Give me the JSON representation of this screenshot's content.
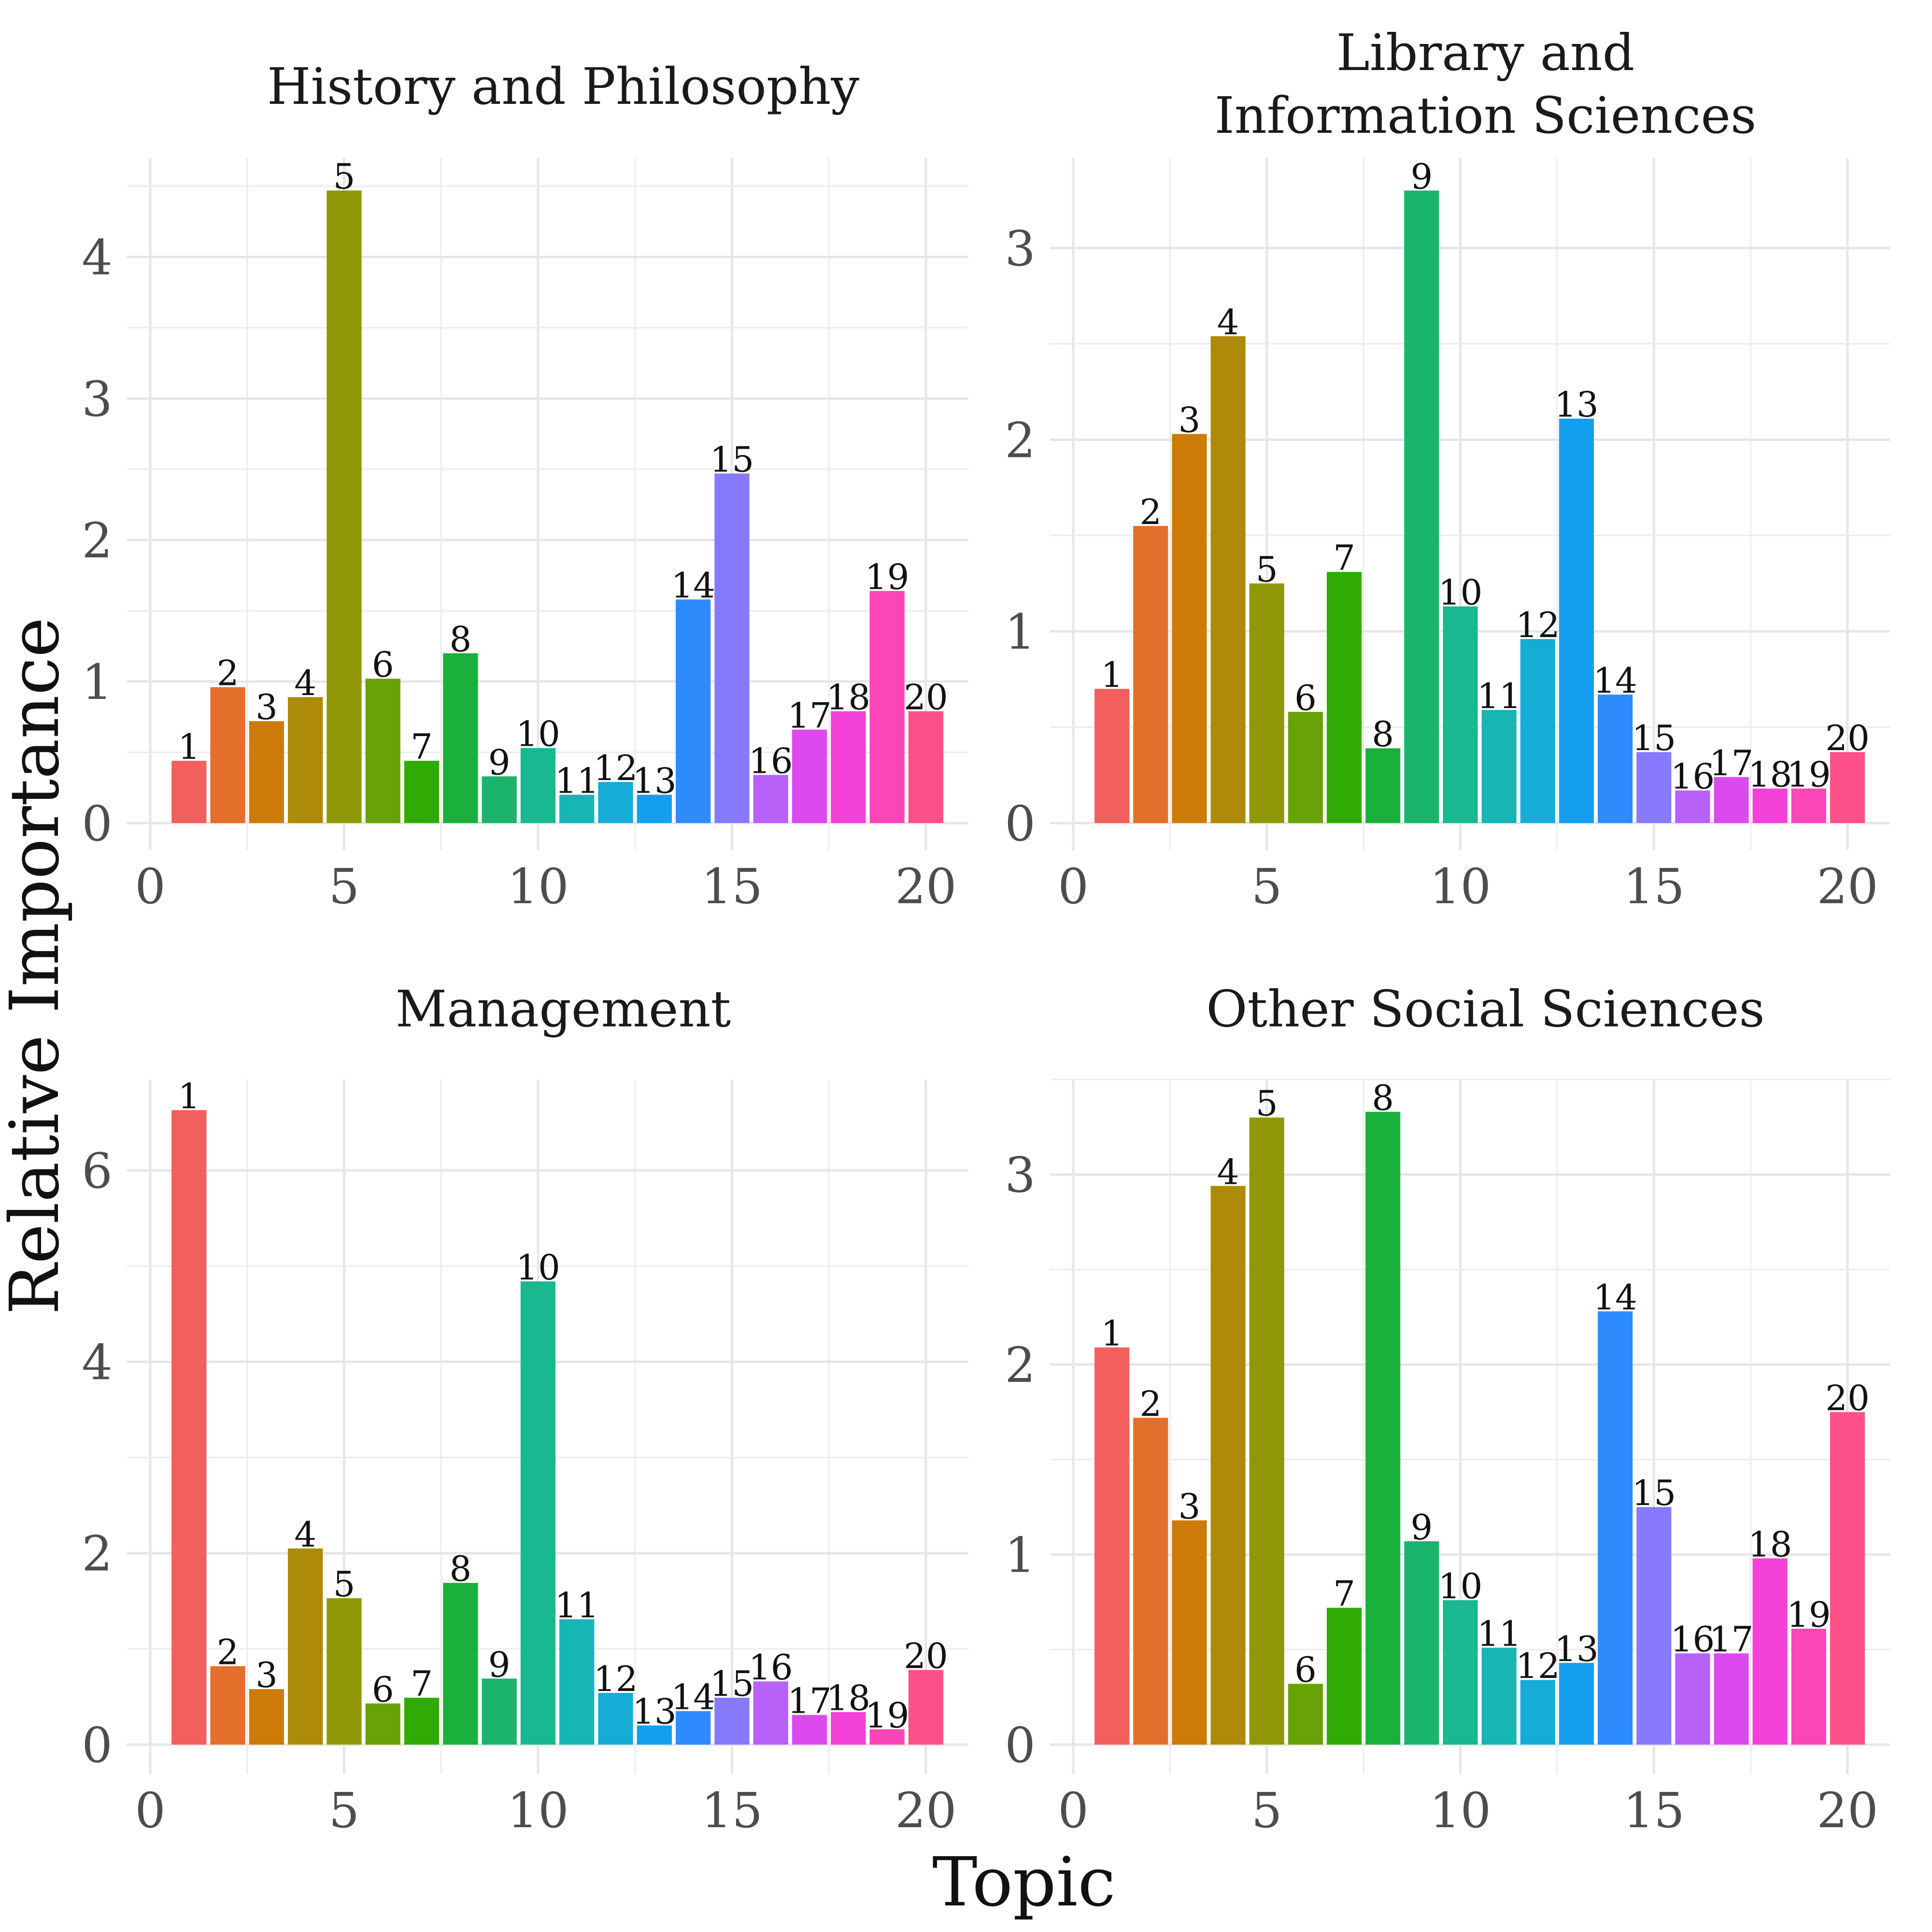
{
  "chart_data": {
    "type": "bar",
    "xlabel": "Topic",
    "ylabel": "Relative Importance",
    "x_ticks": [
      0,
      5,
      10,
      15,
      20
    ],
    "grid": true,
    "legend": "none",
    "categories": [
      1,
      2,
      3,
      4,
      5,
      6,
      7,
      8,
      9,
      10,
      11,
      12,
      13,
      14,
      15,
      16,
      17,
      18,
      19,
      20
    ],
    "colors": [
      "#F25F5C",
      "#E36F2A",
      "#CD7B08",
      "#AD8B08",
      "#919808",
      "#69A208",
      "#30AB04",
      "#19B03C",
      "#1BB46D",
      "#19B891",
      "#18B5B5",
      "#16ACD6",
      "#149FEE",
      "#2E8BFC",
      "#8779FB",
      "#B861F9",
      "#DC49EF",
      "#F341D7",
      "#FC45B8",
      "#FD4F88"
    ],
    "panels": [
      {
        "title": "History and Philosophy",
        "y_ticks": [
          0,
          1,
          2,
          3,
          4
        ],
        "ylim": [
          0,
          4.7
        ],
        "values": [
          0.44,
          0.96,
          0.72,
          0.89,
          4.47,
          1.02,
          0.44,
          1.2,
          0.33,
          0.53,
          0.2,
          0.29,
          0.2,
          1.58,
          2.47,
          0.34,
          0.66,
          0.79,
          1.64,
          0.79
        ]
      },
      {
        "title": "Library and\nInformation Sciences",
        "y_ticks": [
          0,
          1,
          2,
          3
        ],
        "ylim": [
          0,
          3.47
        ],
        "values": [
          0.7,
          1.55,
          2.03,
          2.54,
          1.25,
          0.58,
          1.31,
          0.39,
          3.3,
          1.13,
          0.59,
          0.96,
          2.11,
          0.67,
          0.37,
          0.17,
          0.24,
          0.18,
          0.18,
          0.37
        ]
      },
      {
        "title": "Management",
        "y_ticks": [
          0,
          2,
          4,
          6
        ],
        "ylim": [
          0,
          6.95
        ],
        "values": [
          6.63,
          0.82,
          0.58,
          2.05,
          1.53,
          0.43,
          0.49,
          1.69,
          0.69,
          4.84,
          1.31,
          0.54,
          0.2,
          0.35,
          0.49,
          0.66,
          0.31,
          0.34,
          0.16,
          0.78
        ]
      },
      {
        "title": "Other Social Sciences",
        "y_ticks": [
          0,
          1,
          2,
          3
        ],
        "ylim": [
          0,
          3.5
        ],
        "values": [
          2.09,
          1.72,
          1.18,
          2.94,
          3.3,
          0.32,
          0.72,
          3.33,
          1.07,
          0.76,
          0.51,
          0.34,
          0.43,
          2.28,
          1.25,
          0.48,
          0.48,
          0.98,
          0.61,
          1.75
        ]
      }
    ]
  }
}
